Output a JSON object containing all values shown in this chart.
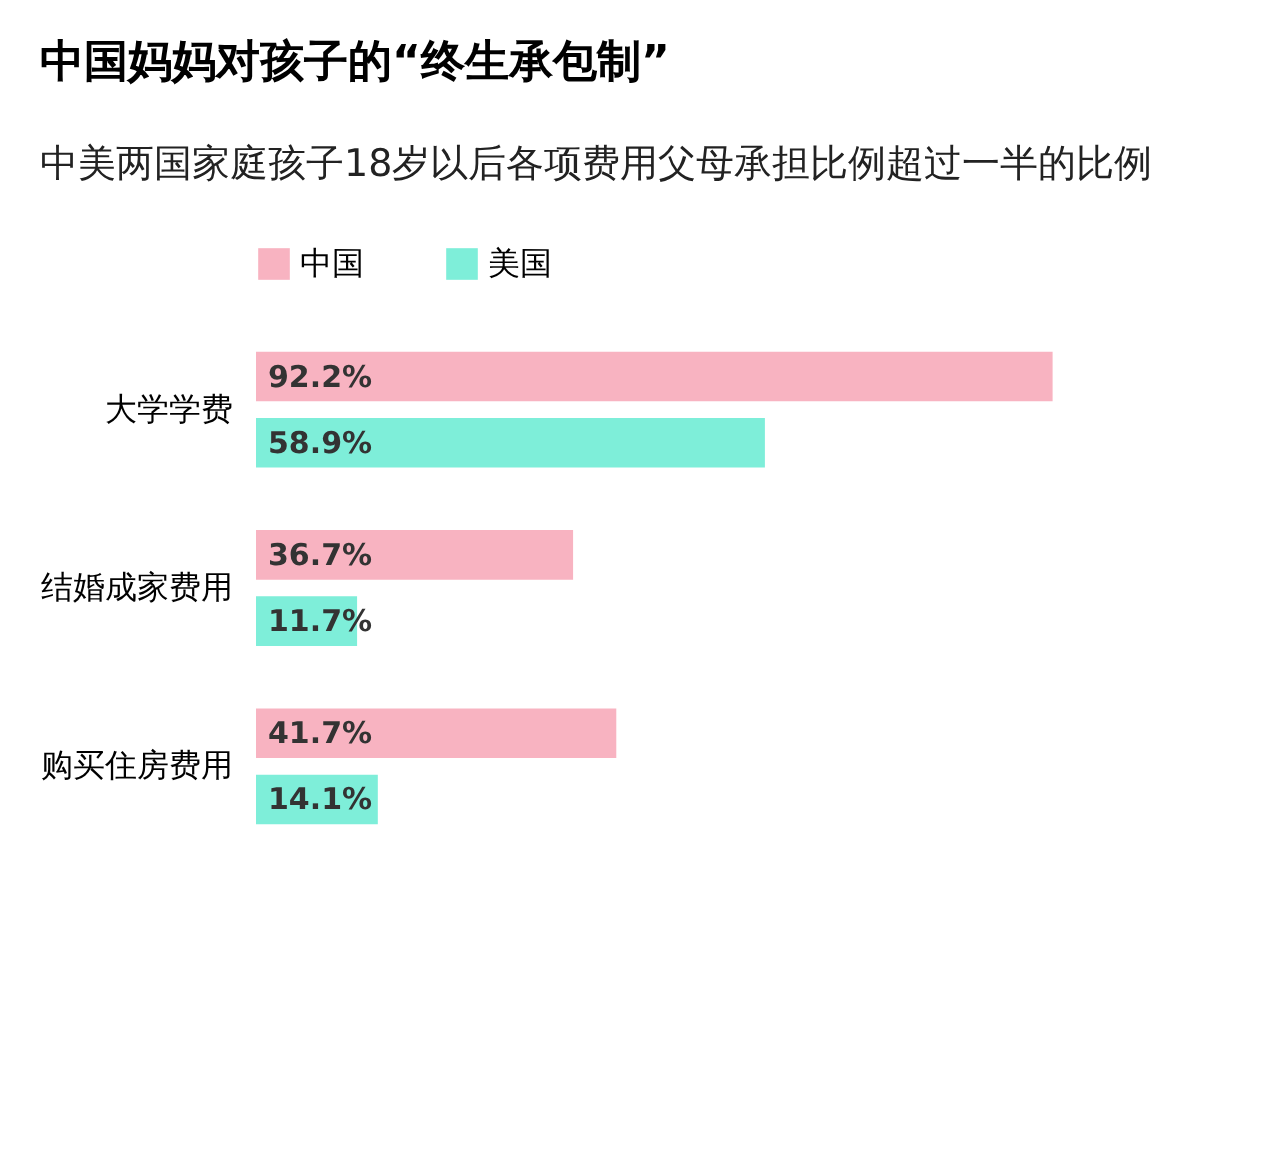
{
  "chart_data": {
    "type": "bar",
    "orientation": "horizontal",
    "title": "中国妈妈对孩子的“终生承包制”",
    "subtitle": "中美两国家庭孩子18岁以后各项费用父母承担比例超过一半的比例",
    "categories": [
      "大学学费",
      "结婚成家费用",
      "购买住房费用"
    ],
    "series": [
      {
        "name": "中国",
        "color": "#f8b3c1",
        "values": [
          92.2,
          36.7,
          41.7
        ],
        "value_labels": [
          "92.2%",
          "36.7%",
          "41.7%"
        ]
      },
      {
        "name": "美国",
        "color": "#7eeed9",
        "values": [
          58.9,
          11.7,
          14.1
        ],
        "value_labels": [
          "58.9%",
          "11.7%",
          "14.1%"
        ]
      }
    ],
    "legend": "top",
    "grid": false
  }
}
